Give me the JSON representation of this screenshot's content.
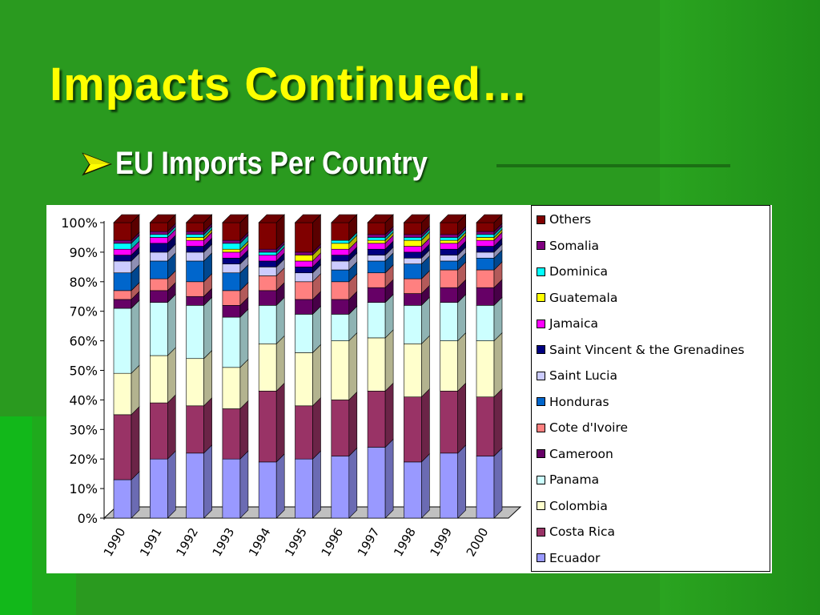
{
  "slide": {
    "title": "Impacts Continued…",
    "bullet": "EU Imports Per Country",
    "bullet_icon": "arrow-bullet-icon"
  },
  "colors": {
    "background": "#2a9a1f",
    "title": "#ffff00",
    "bullet_text": "#ffffff"
  },
  "chart_data": {
    "type": "bar",
    "stacked": true,
    "percent": true,
    "three_d": true,
    "categories": [
      "1990",
      "1991",
      "1992",
      "1993",
      "1994",
      "1995",
      "1996",
      "1997",
      "1998",
      "1999",
      "2000"
    ],
    "yticks": [
      "0%",
      "10%",
      "20%",
      "30%",
      "40%",
      "50%",
      "60%",
      "70%",
      "80%",
      "90%",
      "100%"
    ],
    "ylim": [
      0,
      100
    ],
    "legend_position": "right",
    "series": [
      {
        "name": "Ecuador",
        "color": "#9999ff",
        "values": [
          13,
          20,
          22,
          20,
          19,
          20,
          21,
          24,
          19,
          22,
          21
        ]
      },
      {
        "name": "Costa Rica",
        "color": "#993366",
        "values": [
          22,
          19,
          16,
          17,
          24,
          18,
          19,
          19,
          22,
          21,
          20
        ]
      },
      {
        "name": "Colombia",
        "color": "#ffffcc",
        "values": [
          14,
          16,
          16,
          14,
          16,
          18,
          20,
          18,
          18,
          17,
          19
        ]
      },
      {
        "name": "Panama",
        "color": "#ccffff",
        "values": [
          22,
          18,
          18,
          17,
          13,
          13,
          9,
          12,
          13,
          13,
          12
        ]
      },
      {
        "name": "Cameroon",
        "color": "#660066",
        "values": [
          3,
          4,
          3,
          4,
          5,
          5,
          5,
          5,
          4,
          5,
          6
        ]
      },
      {
        "name": "Cote d'Ivoire",
        "color": "#ff8080",
        "values": [
          3,
          4,
          5,
          5,
          5,
          6,
          6,
          5,
          5,
          6,
          6
        ]
      },
      {
        "name": "Honduras",
        "color": "#0066cc",
        "values": [
          6,
          6,
          7,
          6,
          0,
          0,
          4,
          4,
          5,
          3,
          4
        ]
      },
      {
        "name": "Saint Lucia",
        "color": "#ccccff",
        "values": [
          4,
          3,
          3,
          3,
          3,
          3,
          3,
          2,
          2,
          2,
          2
        ]
      },
      {
        "name": "Saint Vincent & the Grenadines",
        "color": "#000080",
        "values": [
          2,
          3,
          2,
          2,
          2,
          2,
          2,
          2,
          2,
          2,
          2
        ]
      },
      {
        "name": "Jamaica",
        "color": "#ff00ff",
        "values": [
          2,
          2,
          2,
          2,
          2,
          2,
          2,
          2,
          2,
          2,
          2
        ]
      },
      {
        "name": "Guatemala",
        "color": "#ffff00",
        "values": [
          0,
          0,
          1,
          1,
          0,
          2,
          2,
          1,
          2,
          1,
          1
        ]
      },
      {
        "name": "Dominica",
        "color": "#00ffff",
        "values": [
          2,
          1,
          1,
          2,
          1,
          0,
          1,
          1,
          1,
          1,
          1
        ]
      },
      {
        "name": "Somalia",
        "color": "#800080",
        "values": [
          1,
          1,
          1,
          1,
          1,
          1,
          0,
          1,
          1,
          1,
          1
        ]
      },
      {
        "name": "Others",
        "color": "#800000",
        "values": [
          6,
          3,
          3,
          6,
          9,
          10,
          6,
          4,
          4,
          4,
          3
        ]
      }
    ]
  }
}
